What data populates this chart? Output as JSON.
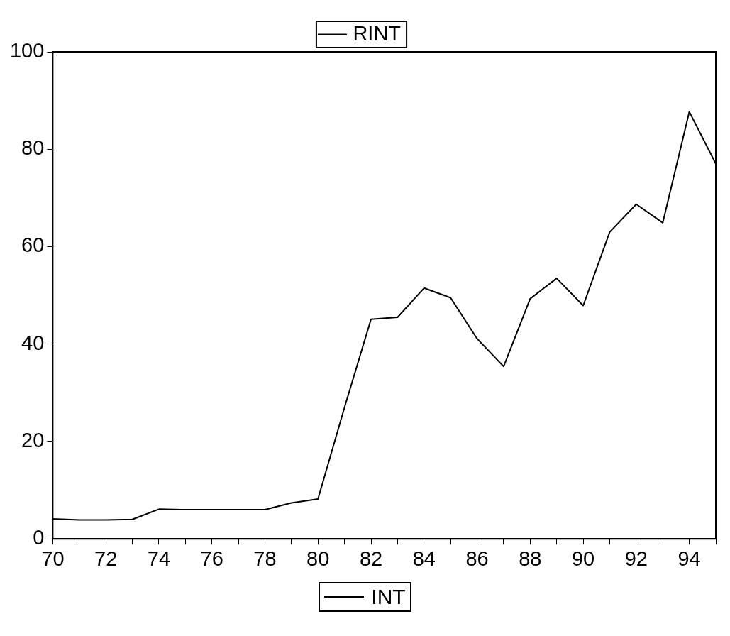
{
  "chart_data": {
    "type": "line",
    "x": [
      70,
      71,
      72,
      73,
      74,
      75,
      76,
      77,
      78,
      79,
      80,
      81,
      82,
      83,
      84,
      85,
      86,
      87,
      88,
      89,
      90,
      91,
      92,
      93,
      94,
      95
    ],
    "series": [
      {
        "name": "RINT",
        "color": "#000000",
        "values": [
          4.1,
          3.9,
          3.9,
          4,
          6.1,
          6,
          6,
          6,
          6,
          7.4,
          8.2,
          27,
          45.1,
          45.5,
          51.5,
          49.5,
          41.1,
          35.4,
          49.3,
          53.5,
          47.9,
          63,
          68.7,
          64.9,
          87.7,
          77
        ]
      }
    ],
    "xlim": [
      70,
      95
    ],
    "xticks": [
      70,
      {
        "value": 71,
        "label": null
      },
      72,
      {
        "value": 73,
        "label": null
      },
      74,
      {
        "value": 75,
        "label": null
      },
      76,
      {
        "value": 77,
        "label": null
      },
      78,
      {
        "value": 79,
        "label": null
      },
      80,
      {
        "value": 81,
        "label": null
      },
      82,
      {
        "value": 83,
        "label": null
      },
      84,
      {
        "value": 85,
        "label": null
      },
      86,
      {
        "value": 87,
        "label": null
      },
      88,
      {
        "value": 89,
        "label": null
      },
      90,
      {
        "value": 91,
        "label": null
      },
      92,
      {
        "value": 93,
        "label": null
      },
      94,
      {
        "value": 95,
        "label": null
      }
    ],
    "ylim": [
      0,
      100
    ],
    "yticks": [
      0,
      20,
      40,
      60,
      80,
      100
    ],
    "grid": false,
    "legend": "top",
    "marker": "none",
    "line_style": "solid",
    "annotations": [
      "INT"
    ]
  }
}
